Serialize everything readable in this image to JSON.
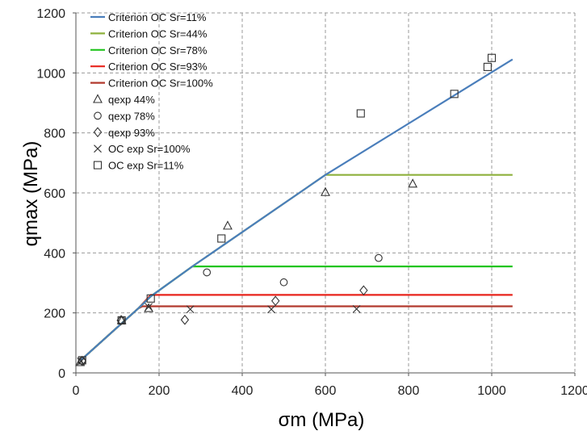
{
  "chart_data": {
    "type": "line",
    "xlabel": "σm (MPa)",
    "ylabel": "qmax (MPa)",
    "xlim": [
      0,
      1200
    ],
    "ylim": [
      0,
      1200
    ],
    "xticks": [
      0,
      200,
      400,
      600,
      800,
      1000,
      1200
    ],
    "yticks": [
      0,
      200,
      400,
      600,
      800,
      1000,
      1200
    ],
    "xtick_labels": [
      "0",
      "200",
      "400",
      "600",
      "800",
      "1000",
      "1200"
    ],
    "ytick_labels": [
      "0",
      "200",
      "400",
      "600",
      "800",
      "1000",
      "1200"
    ],
    "grid": true,
    "legend_position": "top-left",
    "lines": [
      {
        "name": "Criterion OC Sr=11%",
        "color": "#4a7ebb",
        "points": [
          [
            10,
            40
          ],
          [
            150,
            215
          ],
          [
            180,
            255
          ],
          [
            280,
            355
          ],
          [
            600,
            660
          ],
          [
            1050,
            1045
          ]
        ]
      },
      {
        "name": "Criterion OC Sr=44%",
        "color": "#8db03c",
        "points": [
          [
            10,
            40
          ],
          [
            150,
            215
          ],
          [
            180,
            255
          ],
          [
            280,
            355
          ],
          [
            600,
            660
          ],
          [
            1050,
            660
          ]
        ]
      },
      {
        "name": "Criterion OC Sr=78%",
        "color": "#22c41f",
        "points": [
          [
            10,
            40
          ],
          [
            150,
            215
          ],
          [
            180,
            255
          ],
          [
            280,
            355
          ],
          [
            1050,
            355
          ]
        ]
      },
      {
        "name": "Criterion OC Sr=93%",
        "color": "#e8241c",
        "points": [
          [
            10,
            40
          ],
          [
            150,
            215
          ],
          [
            180,
            260
          ],
          [
            1050,
            260
          ]
        ]
      },
      {
        "name": "Criterion OC Sr=100%",
        "color": "#b23a2e",
        "points": [
          [
            10,
            40
          ],
          [
            150,
            215
          ],
          [
            160,
            222
          ],
          [
            1050,
            222
          ]
        ]
      }
    ],
    "scatter": [
      {
        "name": "qexp  44%",
        "marker": "triangle",
        "points": [
          [
            10,
            35
          ],
          [
            110,
            175
          ],
          [
            175,
            215
          ],
          [
            365,
            490
          ],
          [
            600,
            602
          ],
          [
            810,
            630
          ]
        ]
      },
      {
        "name": "qexp 78%",
        "marker": "circle",
        "points": [
          [
            15,
            40
          ],
          [
            110,
            175
          ],
          [
            315,
            335
          ],
          [
            500,
            302
          ],
          [
            728,
            383
          ]
        ]
      },
      {
        "name": "qexp 93%",
        "marker": "diamond",
        "points": [
          [
            15,
            40
          ],
          [
            108,
            175
          ],
          [
            262,
            177
          ],
          [
            480,
            240
          ],
          [
            692,
            275
          ]
        ]
      },
      {
        "name": "OC exp Sr=100%",
        "marker": "x",
        "points": [
          [
            12,
            38
          ],
          [
            175,
            220
          ],
          [
            275,
            212
          ],
          [
            470,
            212
          ],
          [
            675,
            213
          ]
        ]
      },
      {
        "name": "OC exp Sr=11%",
        "marker": "square",
        "points": [
          [
            15,
            42
          ],
          [
            110,
            175
          ],
          [
            180,
            248
          ],
          [
            350,
            448
          ],
          [
            685,
            865
          ],
          [
            910,
            930
          ],
          [
            990,
            1020
          ],
          [
            1000,
            1050
          ]
        ]
      }
    ]
  }
}
